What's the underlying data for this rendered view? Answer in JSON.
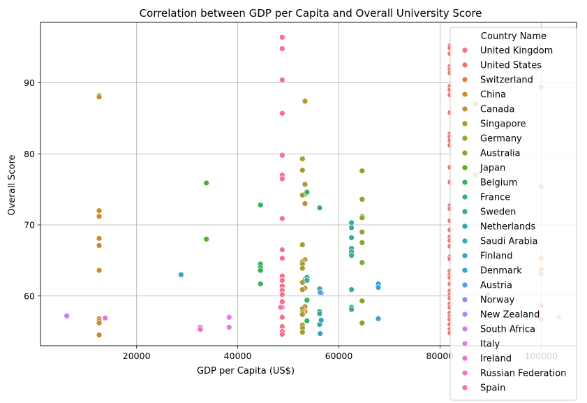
{
  "chart_data": {
    "type": "scatter",
    "title": "Correlation between GDP per Capita and Overall University Score",
    "xlabel": "GDP per Capita (US$)",
    "ylabel": "Overall Score",
    "xlim": [
      1000,
      107000
    ],
    "ylim": [
      53,
      98.5
    ],
    "xticks": [
      20000,
      40000,
      60000,
      80000,
      100000
    ],
    "yticks": [
      60,
      70,
      80,
      90
    ],
    "xtick_labels": [
      "20000",
      "40000",
      "60000",
      "80000",
      "100000"
    ],
    "ytick_labels": [
      "60",
      "70",
      "80",
      "90"
    ],
    "grid": true,
    "legend": {
      "title": "Country Name",
      "placement": "upper-right"
    },
    "series": [
      {
        "name": "United Kingdom",
        "color": "#f77189",
        "points": [
          [
            48800,
            96.4
          ],
          [
            48800,
            94.8
          ],
          [
            48800,
            90.4
          ],
          [
            48800,
            85.7
          ],
          [
            48800,
            79.8
          ],
          [
            48800,
            77.0
          ],
          [
            48800,
            76.5
          ],
          [
            48800,
            70.9
          ],
          [
            48800,
            66.5
          ],
          [
            48800,
            65.3
          ],
          [
            48800,
            62.8
          ],
          [
            48800,
            62.2
          ],
          [
            48800,
            61.4
          ],
          [
            48800,
            60.8
          ],
          [
            48800,
            60.2
          ],
          [
            48800,
            59.2
          ],
          [
            48800,
            58.4
          ],
          [
            48800,
            57.0
          ],
          [
            48800,
            55.7
          ],
          [
            48800,
            55.0
          ],
          [
            48800,
            54.6
          ]
        ]
      },
      {
        "name": "United States",
        "color": "#f0726a",
        "points": [
          [
            82000,
            95.2
          ],
          [
            82000,
            94.9
          ],
          [
            82000,
            94.1
          ],
          [
            82000,
            92.3
          ],
          [
            82000,
            91.9
          ],
          [
            82000,
            91.4
          ],
          [
            82000,
            89.5
          ],
          [
            82000,
            89.0
          ],
          [
            82000,
            88.3
          ],
          [
            82000,
            85.8
          ],
          [
            82000,
            82.8
          ],
          [
            82000,
            82.4
          ],
          [
            82000,
            81.9
          ],
          [
            82000,
            81.2
          ],
          [
            82000,
            78.1
          ],
          [
            82000,
            76.0
          ],
          [
            82000,
            72.7
          ],
          [
            82000,
            72.3
          ],
          [
            82000,
            70.6
          ],
          [
            82000,
            69.3
          ],
          [
            82000,
            68.3
          ],
          [
            82000,
            67.8
          ],
          [
            82000,
            67.0
          ],
          [
            82000,
            65.5
          ],
          [
            82000,
            65.2
          ],
          [
            82000,
            63.5
          ],
          [
            82000,
            63.0
          ],
          [
            82000,
            62.6
          ],
          [
            82000,
            61.7
          ],
          [
            82000,
            60.7
          ],
          [
            82000,
            60.2
          ],
          [
            82000,
            59.7
          ],
          [
            82000,
            58.9
          ],
          [
            82000,
            58.4
          ],
          [
            82000,
            57.6
          ],
          [
            82000,
            57.1
          ],
          [
            82000,
            56.7
          ],
          [
            82000,
            56.0
          ],
          [
            82000,
            55.3
          ],
          [
            82000,
            54.8
          ]
        ]
      },
      {
        "name": "Switzerland",
        "color": "#e77f3c",
        "points": [
          [
            100000,
            89.4
          ],
          [
            100000,
            75.4
          ],
          [
            100000,
            65.3
          ],
          [
            100000,
            63.7
          ],
          [
            100000,
            63.1
          ],
          [
            100000,
            58.7
          ],
          [
            100000,
            56.7
          ]
        ]
      },
      {
        "name": "China",
        "color": "#cc8a30",
        "points": [
          [
            12600,
            88.2
          ],
          [
            12600,
            88.0
          ],
          [
            12600,
            72.0
          ],
          [
            12600,
            71.2
          ],
          [
            12600,
            68.1
          ],
          [
            12600,
            67.1
          ],
          [
            12600,
            63.6
          ],
          [
            12600,
            56.8
          ],
          [
            12600,
            56.5
          ],
          [
            12600,
            56.2
          ],
          [
            12600,
            54.5
          ]
        ]
      },
      {
        "name": "Canada",
        "color": "#bb9331",
        "points": [
          [
            53300,
            87.4
          ],
          [
            53300,
            75.7
          ],
          [
            53300,
            74.3
          ],
          [
            53300,
            73.0
          ],
          [
            53300,
            65.1
          ],
          [
            53300,
            62.3
          ],
          [
            53300,
            61.1
          ],
          [
            53300,
            58.5
          ],
          [
            53300,
            57.8
          ]
        ]
      },
      {
        "name": "Singapore",
        "color": "#a99a31",
        "points": [
          [
            52800,
            79.3
          ],
          [
            52800,
            77.7
          ],
          [
            52800,
            74.2
          ],
          [
            52800,
            67.2
          ],
          [
            52800,
            64.8
          ],
          [
            52800,
            64.5
          ],
          [
            52800,
            63.9
          ],
          [
            52800,
            61.9
          ],
          [
            52800,
            60.9
          ],
          [
            52800,
            58.2
          ],
          [
            52800,
            57.7
          ],
          [
            52800,
            57.4
          ],
          [
            52800,
            55.9
          ],
          [
            52800,
            55.5
          ],
          [
            52800,
            54.9
          ]
        ]
      },
      {
        "name": "Germany",
        "color": "#9aa032",
        "points": [
          [
            87000,
            87.0
          ],
          [
            87000,
            77.0
          ],
          [
            64600,
            71.2
          ],
          [
            64600,
            69.0
          ]
        ]
      },
      {
        "name": "Australia",
        "color": "#87a431",
        "points": [
          [
            64600,
            77.6
          ],
          [
            64600,
            73.6
          ],
          [
            64600,
            71.0
          ],
          [
            64600,
            67.5
          ],
          [
            64600,
            64.7
          ],
          [
            64600,
            59.3
          ],
          [
            64600,
            56.2
          ]
        ]
      },
      {
        "name": "Japan",
        "color": "#50b131",
        "points": [
          [
            33800,
            75.9
          ],
          [
            33800,
            68.0
          ]
        ]
      },
      {
        "name": "Belgium",
        "color": "#33b25c",
        "points": [
          [
            44500,
            72.8
          ],
          [
            44500,
            64.5
          ],
          [
            44500,
            64.0
          ],
          [
            44500,
            63.6
          ],
          [
            44500,
            61.7
          ],
          [
            53700,
            74.6
          ],
          [
            53700,
            59.4
          ],
          [
            53700,
            56.5
          ]
        ]
      },
      {
        "name": "France",
        "color": "#35ae85",
        "points": [
          [
            56200,
            72.4
          ],
          [
            56200,
            61.0
          ],
          [
            56200,
            57.8
          ],
          [
            56200,
            57.5
          ],
          [
            56200,
            56.0
          ]
        ]
      },
      {
        "name": "Sweden",
        "color": "#37ab9c",
        "points": [
          [
            62500,
            70.3
          ],
          [
            62500,
            69.6
          ],
          [
            62500,
            68.2
          ],
          [
            62500,
            66.7
          ],
          [
            62500,
            66.2
          ],
          [
            62500,
            65.7
          ],
          [
            62500,
            58.4
          ],
          [
            62500,
            58.1
          ],
          [
            53700,
            62.6
          ],
          [
            53700,
            62.2
          ]
        ]
      },
      {
        "name": "Netherlands",
        "color": "#38a9a9",
        "points": [
          [
            62500,
            60.9
          ]
        ]
      },
      {
        "name": "Saudi Arabia",
        "color": "#3aa6b6",
        "points": [
          [
            28800,
            63.0
          ]
        ]
      },
      {
        "name": "Finland",
        "color": "#3ca3c5",
        "points": [
          [
            56500,
            60.4
          ],
          [
            56500,
            56.6
          ]
        ]
      },
      {
        "name": "Denmark",
        "color": "#3e9fd8",
        "points": [
          [
            67800,
            61.7
          ],
          [
            67800,
            61.2
          ],
          [
            67800,
            56.8
          ],
          [
            56300,
            54.7
          ]
        ]
      },
      {
        "name": "Austria",
        "color": "#5b96f0",
        "points": [
          [
            56300,
            60.5
          ]
        ]
      },
      {
        "name": "Norway",
        "color": "#8b8ef3",
        "points": [
          [
            89500,
            60.2
          ]
        ]
      },
      {
        "name": "New Zealand",
        "color": "#a98af4",
        "points": [
          [
            48500,
            58.4
          ]
        ]
      },
      {
        "name": "South Africa",
        "color": "#c882f4",
        "points": [
          [
            6200,
            57.2
          ]
        ]
      },
      {
        "name": "Italy",
        "color": "#e378f0",
        "points": [
          [
            38300,
            57.0
          ],
          [
            38300,
            55.6
          ],
          [
            103500,
            57.0
          ]
        ]
      },
      {
        "name": "Ireland",
        "color": "#f56ee0",
        "points": [
          [
            13800,
            56.9
          ]
        ]
      },
      {
        "name": "Russian Federation",
        "color": "#f66ec4",
        "points": [
          [
            32600,
            55.6
          ],
          [
            32600,
            55.3
          ]
        ]
      },
      {
        "name": "Spain",
        "color": "#f76fa6",
        "points": [
          [
            48500,
            58.4
          ]
        ]
      }
    ]
  }
}
